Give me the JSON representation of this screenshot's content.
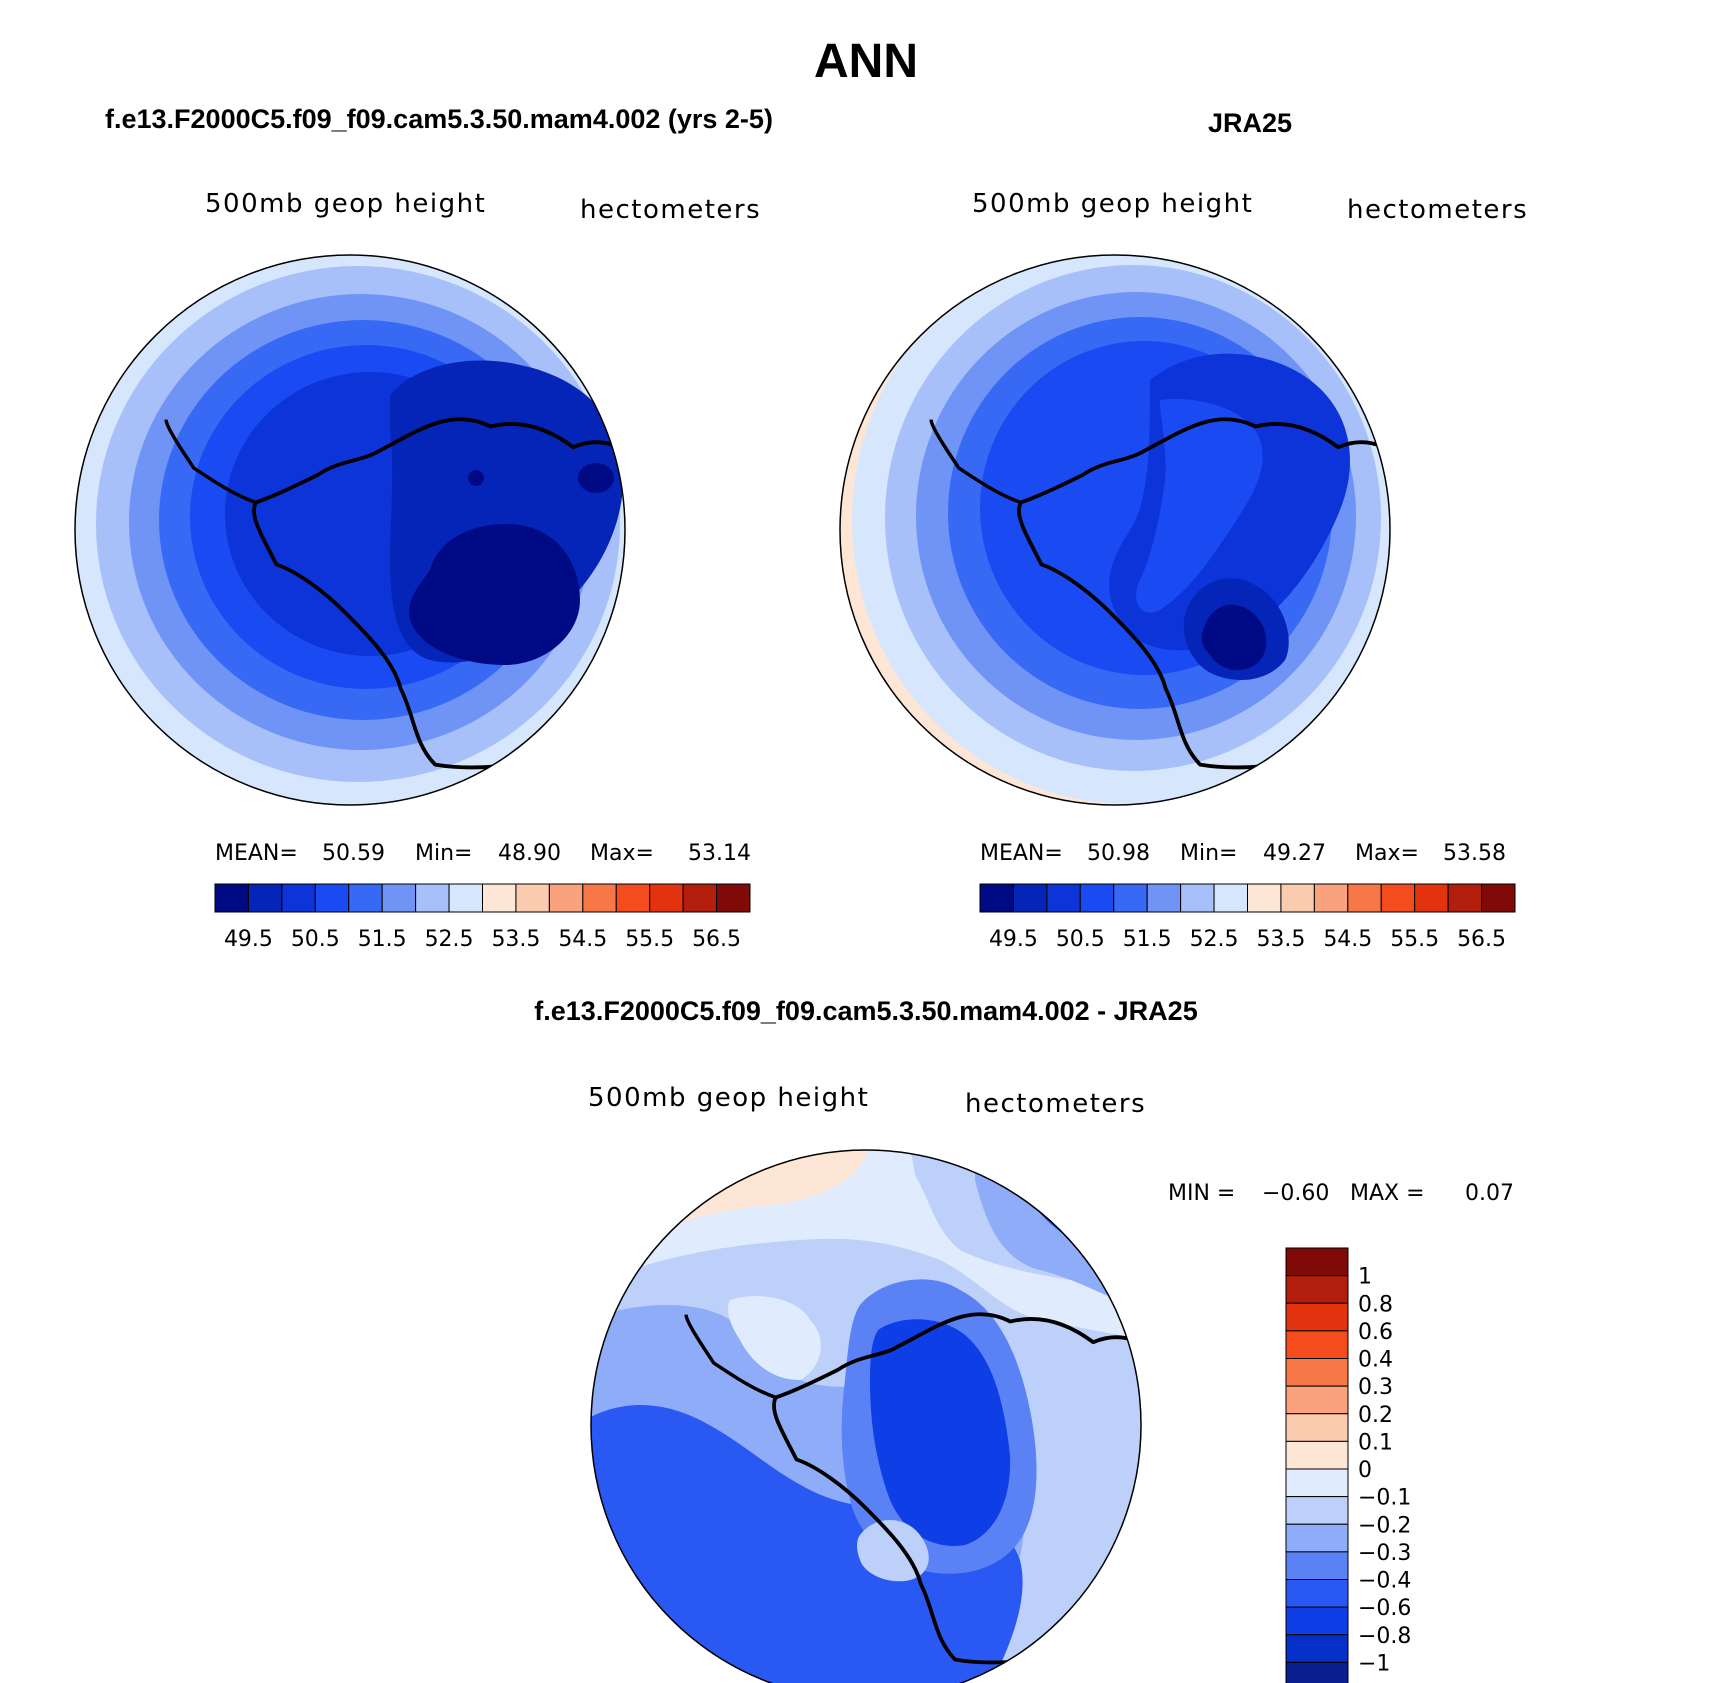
{
  "page_title": "ANN",
  "colors": {
    "neg": [
      "#000a85",
      "#0425b8",
      "#0d34d9",
      "#1a4bf2",
      "#3769f5",
      "#6f94f6",
      "#a7c0f9",
      "#d6e6fc"
    ],
    "pos": [
      "#fde6d6",
      "#fbcbb0",
      "#f9a27d",
      "#f77746",
      "#f54c1d",
      "#e2320e",
      "#b21e0b",
      "#7f0a08"
    ],
    "diff_neg": [
      "#0a1f8f",
      "#0630c8",
      "#0d3ee6",
      "#2a58f2",
      "#5b82f5",
      "#8eacf7",
      "#bcd0fa",
      "#e0ecfd"
    ],
    "diff_pos": [
      "#fde6d6",
      "#fbcbb0",
      "#f9a27d",
      "#f77746",
      "#f54c1d",
      "#e2320e",
      "#b21e0b",
      "#7f0a08"
    ]
  },
  "chart_data": [
    {
      "type": "heatmap",
      "title": "f.e13.F2000C5.f09_f09.cam5.3.50.mam4.002 (yrs 2-5)",
      "left_label": "500mb geop height",
      "right_label": "hectometers",
      "stats": {
        "mean_label": "MEAN=",
        "mean": "50.59",
        "min_label": "Min=",
        "min": "48.90",
        "max_label": "Max=",
        "max": "53.14"
      },
      "colorbar_ticks": [
        "49.5",
        "50.5",
        "51.5",
        "52.5",
        "53.5",
        "54.5",
        "55.5",
        "56.5"
      ],
      "contour_levels": [
        49,
        49.5,
        50,
        50.5,
        51,
        51.5,
        52,
        52.5,
        53,
        53.5,
        54,
        54.5,
        55,
        55.5,
        56,
        56.5
      ],
      "projection": "south polar stereographic"
    },
    {
      "type": "heatmap",
      "title": "JRA25",
      "left_label": "500mb geop height",
      "right_label": "hectometers",
      "stats": {
        "mean_label": "MEAN=",
        "mean": "50.98",
        "min_label": "Min=",
        "min": "49.27",
        "max_label": "Max=",
        "max": "53.58"
      },
      "colorbar_ticks": [
        "49.5",
        "50.5",
        "51.5",
        "52.5",
        "53.5",
        "54.5",
        "55.5",
        "56.5"
      ],
      "contour_levels": [
        49,
        49.5,
        50,
        50.5,
        51,
        51.5,
        52,
        52.5,
        53,
        53.5,
        54,
        54.5,
        55,
        55.5,
        56,
        56.5
      ],
      "projection": "south polar stereographic"
    },
    {
      "type": "heatmap",
      "title": "f.e13.F2000C5.f09_f09.cam5.3.50.mam4.002 - JRA25",
      "left_label": "500mb geop height",
      "right_label": "hectometers",
      "stats": {
        "min_label": "MIN =",
        "min": "−0.60",
        "max_label": "MAX =",
        "max": "0.07"
      },
      "colorbar_ticks": [
        "1",
        "0.8",
        "0.6",
        "0.4",
        "0.3",
        "0.2",
        "0.1",
        "0",
        "−0.1",
        "−0.2",
        "−0.3",
        "−0.4",
        "−0.6",
        "−0.8",
        "−1"
      ],
      "contour_levels": [
        -1,
        -0.8,
        -0.6,
        -0.4,
        -0.3,
        -0.2,
        -0.1,
        0,
        0.1,
        0.2,
        0.3,
        0.4,
        0.6,
        0.8,
        1
      ],
      "projection": "south polar stereographic"
    }
  ]
}
